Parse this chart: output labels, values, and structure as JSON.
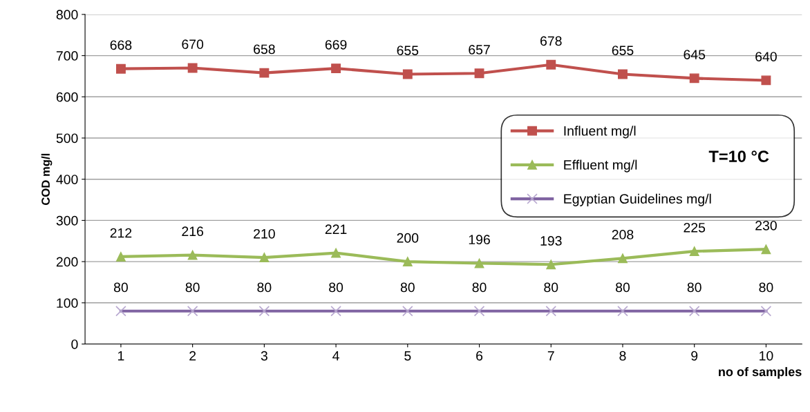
{
  "chart_data": {
    "type": "line",
    "xlabel": "no of samples",
    "ylabel": "COD mg/l",
    "categories": [
      "1",
      "2",
      "3",
      "4",
      "5",
      "6",
      "7",
      "8",
      "9",
      "10"
    ],
    "series": [
      {
        "name": "Influent mg/l",
        "color": "#c0504d",
        "marker": "square",
        "values": [
          668,
          670,
          658,
          669,
          655,
          657,
          678,
          655,
          645,
          640
        ]
      },
      {
        "name": "Effluent mg/l",
        "color": "#9bbb59",
        "marker": "triangle",
        "values": [
          212,
          216,
          210,
          221,
          200,
          196,
          193,
          208,
          225,
          230
        ]
      },
      {
        "name": "Egyptian Guidelines mg/l",
        "color": "#8064a2",
        "marker": "cross",
        "values": [
          80,
          80,
          80,
          80,
          80,
          80,
          80,
          80,
          80,
          80
        ]
      }
    ],
    "ylim": [
      0,
      800
    ],
    "yticks": [
      0,
      100,
      200,
      300,
      400,
      500,
      600,
      700,
      800
    ],
    "grid": "y",
    "legend": "right",
    "data_labels": true,
    "line_style": "solid",
    "annotations": [
      "T=10 °C"
    ]
  }
}
